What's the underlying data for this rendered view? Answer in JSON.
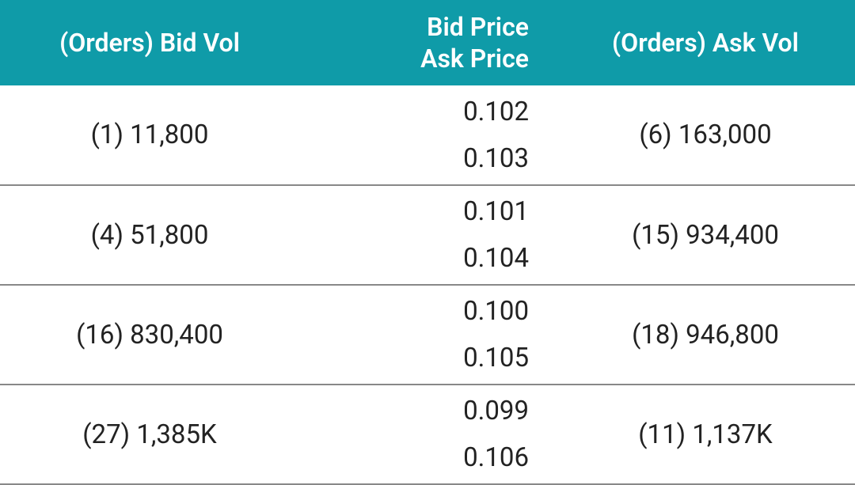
{
  "header": {
    "bid_col": "(Orders) Bid Vol",
    "price_col_line1": "Bid Price",
    "price_col_line2": "Ask Price",
    "ask_col": "(Orders) Ask Vol"
  },
  "colors": {
    "header_bg": "#0f9ba8",
    "header_text": "#ffffff",
    "row_border": "#888888",
    "cell_text": "#222222",
    "row_bg": "#ffffff"
  },
  "font_sizes": {
    "header": 32,
    "cell": 33
  },
  "rows": [
    {
      "bid_orders": "(1)",
      "bid_vol": "11,800",
      "bid_price": "0.102",
      "ask_price": "0.103",
      "ask_orders": "(6)",
      "ask_vol": "163,000"
    },
    {
      "bid_orders": "(4)",
      "bid_vol": "51,800",
      "bid_price": "0.101",
      "ask_price": "0.104",
      "ask_orders": "(15)",
      "ask_vol": "934,400"
    },
    {
      "bid_orders": "(16)",
      "bid_vol": "830,400",
      "bid_price": "0.100",
      "ask_price": "0.105",
      "ask_orders": "(18)",
      "ask_vol": "946,800"
    },
    {
      "bid_orders": "(27)",
      "bid_vol": "1,385K",
      "bid_price": "0.099",
      "ask_price": "0.106",
      "ask_orders": "(11)",
      "ask_vol": "1,137K"
    }
  ]
}
